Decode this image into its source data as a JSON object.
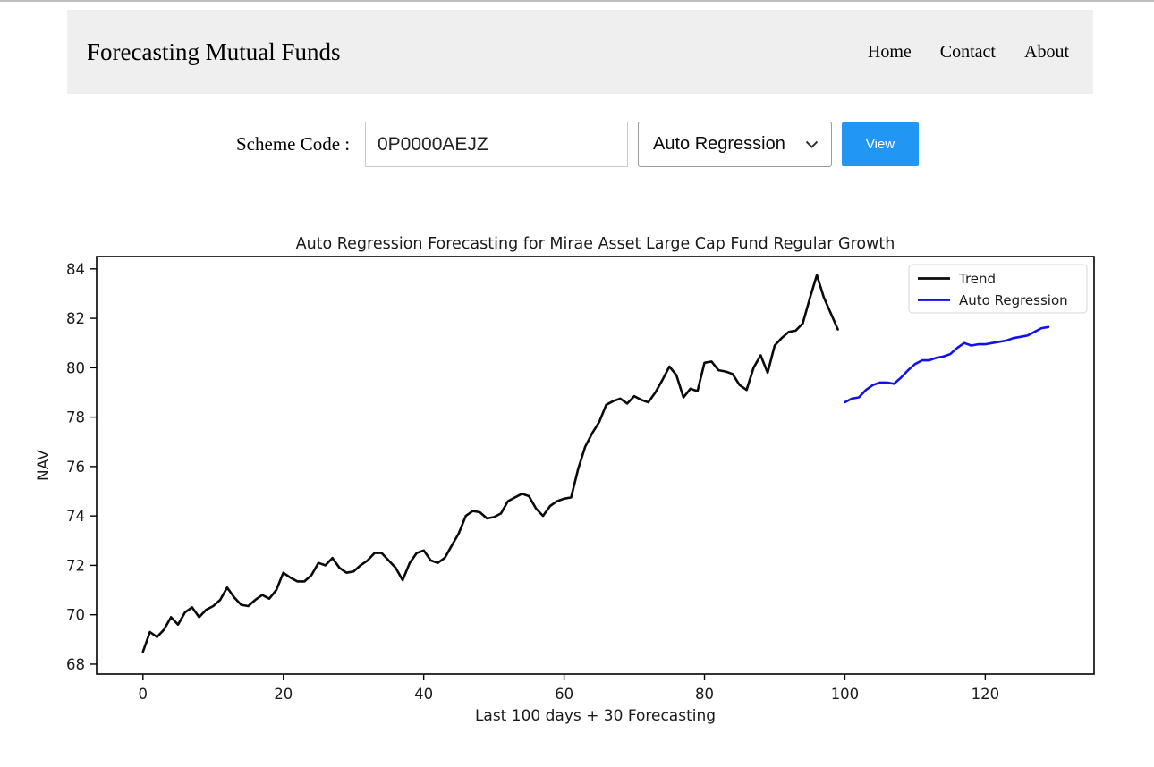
{
  "header": {
    "title": "Forecasting Mutual Funds",
    "nav": [
      {
        "label": "Home"
      },
      {
        "label": "Contact"
      },
      {
        "label": "About"
      }
    ]
  },
  "form": {
    "scheme_code_label": "Scheme Code :",
    "scheme_code_value": "0P0000AEJZ",
    "model_selected": "Auto Regression",
    "view_button_label": "View"
  },
  "colors": {
    "accent_blue": "#2196f3",
    "header_bg": "#efefef",
    "trend_line": "#0a0a0a",
    "forecast_line": "#1212ee",
    "chart_text": "#1a1a1a",
    "legend_border": "#d5d5d5"
  },
  "chart_data": {
    "type": "line",
    "title": "Auto Regression Forecasting for Mirae Asset Large Cap Fund Regular Growth",
    "xlabel": "Last 100 days + 30 Forecasting",
    "ylabel": "NAV",
    "xlim": [
      -6.6,
      135.5
    ],
    "ylim": [
      67.6,
      84.5
    ],
    "xticks": [
      0,
      20,
      40,
      60,
      80,
      100,
      120
    ],
    "yticks": [
      68,
      70,
      72,
      74,
      76,
      78,
      80,
      82,
      84
    ],
    "grid": false,
    "legend": {
      "position": "upper right",
      "entries": [
        {
          "label": "Trend",
          "color": "#0a0a0a"
        },
        {
          "label": "Auto Regression",
          "color": "#1212ee"
        }
      ]
    },
    "series": [
      {
        "name": "Trend",
        "color": "#0a0a0a",
        "x_start": 0,
        "values": [
          68.5,
          69.3,
          69.1,
          69.4,
          69.9,
          69.6,
          70.1,
          70.3,
          69.9,
          70.2,
          70.35,
          70.6,
          71.1,
          70.7,
          70.4,
          70.35,
          70.6,
          70.8,
          70.65,
          71.0,
          71.7,
          71.5,
          71.35,
          71.35,
          71.6,
          72.1,
          72.0,
          72.3,
          71.9,
          71.7,
          71.75,
          72.0,
          72.2,
          72.5,
          72.5,
          72.2,
          71.9,
          71.4,
          72.1,
          72.5,
          72.6,
          72.2,
          72.1,
          72.3,
          72.8,
          73.3,
          74.0,
          74.2,
          74.15,
          73.9,
          73.95,
          74.1,
          74.6,
          74.75,
          74.9,
          74.8,
          74.3,
          74.0,
          74.4,
          74.6,
          74.7,
          74.75,
          75.9,
          76.8,
          77.35,
          77.8,
          78.5,
          78.65,
          78.75,
          78.55,
          78.85,
          78.7,
          78.6,
          79.0,
          79.5,
          80.05,
          79.7,
          78.8,
          79.15,
          79.05,
          80.2,
          80.25,
          79.9,
          79.85,
          79.75,
          79.3,
          79.1,
          80.0,
          80.5,
          79.8,
          80.9,
          81.2,
          81.45,
          81.5,
          81.8,
          82.8,
          83.75,
          82.85,
          82.2,
          81.55
        ]
      },
      {
        "name": "Auto Regression",
        "color": "#1212ee",
        "x_start": 100,
        "values": [
          78.6,
          78.75,
          78.8,
          79.1,
          79.3,
          79.4,
          79.4,
          79.35,
          79.6,
          79.9,
          80.15,
          80.3,
          80.3,
          80.4,
          80.45,
          80.55,
          80.8,
          81.0,
          80.9,
          80.95,
          80.95,
          81.0,
          81.05,
          81.1,
          81.2,
          81.25,
          81.3,
          81.45,
          81.6,
          81.65
        ]
      }
    ]
  }
}
